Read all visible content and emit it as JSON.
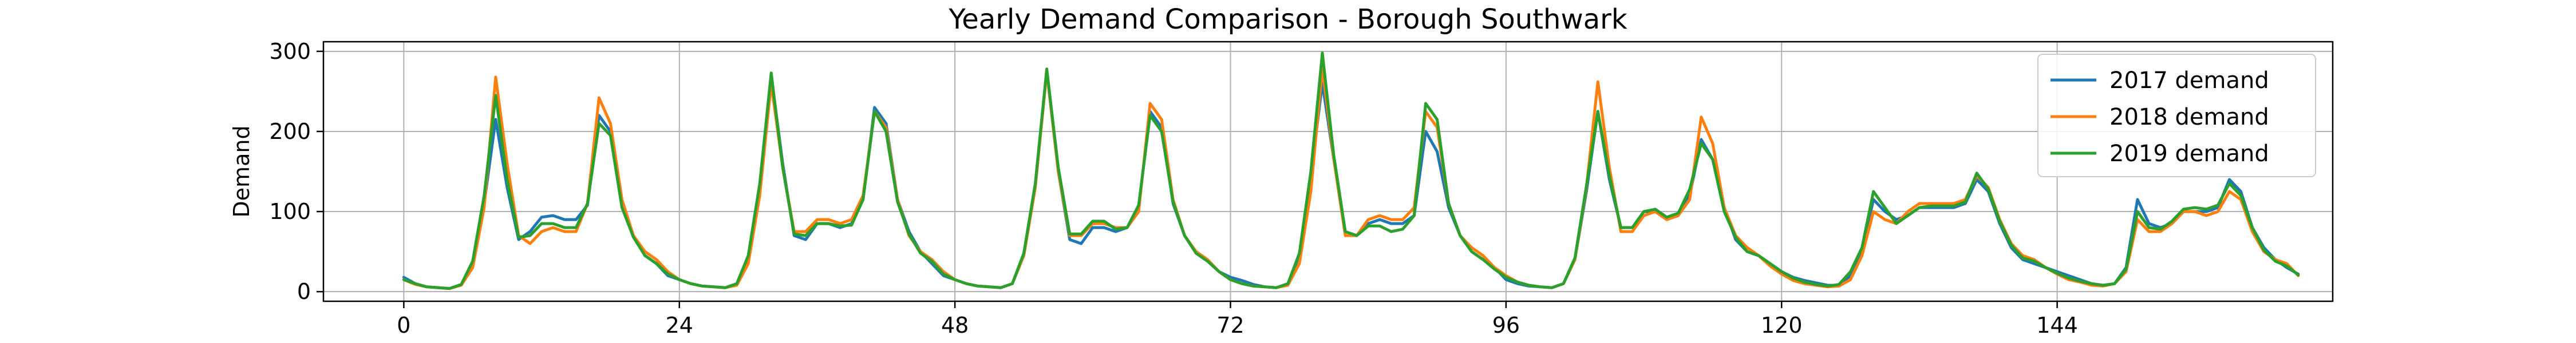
{
  "chart_data": {
    "type": "line",
    "title": "Yearly Demand Comparison - Borough Southwark",
    "xlabel": "",
    "ylabel": "Demand",
    "xlim": [
      -7,
      168
    ],
    "ylim": [
      -12,
      312
    ],
    "xticks": [
      0,
      24,
      48,
      72,
      96,
      120,
      144
    ],
    "yticks": [
      0,
      100,
      200,
      300
    ],
    "grid": true,
    "legend_position": "top-right",
    "series": [
      {
        "name": "2017 demand",
        "color": "#1f77b4",
        "values": [
          18,
          10,
          6,
          5,
          4,
          9,
          35,
          110,
          215,
          130,
          65,
          75,
          93,
          95,
          90,
          90,
          108,
          220,
          200,
          110,
          70,
          45,
          35,
          20,
          15,
          10,
          7,
          6,
          5,
          10,
          40,
          130,
          270,
          160,
          70,
          65,
          85,
          85,
          80,
          85,
          115,
          230,
          210,
          115,
          75,
          50,
          35,
          20,
          15,
          10,
          7,
          6,
          5,
          10,
          45,
          130,
          275,
          150,
          65,
          60,
          80,
          80,
          75,
          80,
          105,
          225,
          205,
          110,
          70,
          50,
          40,
          25,
          18,
          14,
          9,
          6,
          5,
          10,
          45,
          145,
          260,
          165,
          75,
          70,
          85,
          90,
          85,
          85,
          95,
          200,
          175,
          105,
          70,
          50,
          40,
          30,
          15,
          10,
          7,
          6,
          5,
          10,
          40,
          125,
          225,
          140,
          80,
          80,
          100,
          100,
          90,
          95,
          120,
          190,
          165,
          105,
          65,
          50,
          45,
          35,
          25,
          18,
          14,
          11,
          8,
          8,
          20,
          50,
          115,
          100,
          90,
          95,
          105,
          105,
          105,
          105,
          110,
          140,
          125,
          85,
          55,
          40,
          35,
          30,
          25,
          20,
          15,
          10,
          8,
          10,
          30,
          115,
          85,
          80,
          85,
          100,
          100,
          100,
          105,
          140,
          125,
          80,
          55,
          40,
          30,
          22
        ],
        "x_start": 0
      },
      {
        "name": "2018 demand",
        "color": "#ff7f0e",
        "values": [
          15,
          9,
          6,
          5,
          4,
          8,
          30,
          105,
          268,
          160,
          70,
          60,
          75,
          80,
          75,
          75,
          110,
          242,
          210,
          115,
          70,
          50,
          40,
          25,
          15,
          10,
          7,
          6,
          5,
          8,
          35,
          120,
          260,
          155,
          75,
          75,
          90,
          90,
          85,
          90,
          120,
          225,
          205,
          115,
          70,
          50,
          40,
          25,
          15,
          10,
          7,
          6,
          5,
          10,
          45,
          130,
          275,
          150,
          70,
          70,
          85,
          85,
          80,
          80,
          100,
          235,
          215,
          115,
          70,
          50,
          40,
          25,
          15,
          10,
          7,
          6,
          5,
          8,
          35,
          125,
          280,
          165,
          70,
          70,
          90,
          95,
          90,
          90,
          105,
          225,
          205,
          110,
          70,
          55,
          45,
          30,
          20,
          12,
          8,
          6,
          5,
          10,
          40,
          130,
          262,
          155,
          75,
          75,
          95,
          100,
          90,
          95,
          115,
          218,
          185,
          105,
          70,
          55,
          45,
          32,
          22,
          14,
          10,
          8,
          6,
          7,
          15,
          45,
          100,
          90,
          85,
          100,
          110,
          110,
          110,
          110,
          115,
          145,
          130,
          90,
          60,
          45,
          40,
          30,
          22,
          15,
          12,
          8,
          7,
          10,
          25,
          90,
          75,
          75,
          85,
          100,
          100,
          95,
          100,
          125,
          115,
          75,
          50,
          40,
          35,
          20
        ],
        "x_start": 0
      },
      {
        "name": "2019 demand",
        "color": "#2ca02c",
        "values": [
          15,
          10,
          6,
          5,
          4,
          9,
          38,
          120,
          245,
          140,
          68,
          70,
          85,
          85,
          80,
          80,
          110,
          210,
          195,
          105,
          68,
          45,
          35,
          22,
          15,
          10,
          7,
          6,
          5,
          10,
          45,
          135,
          273,
          155,
          72,
          70,
          85,
          85,
          82,
          83,
          115,
          225,
          200,
          112,
          72,
          48,
          38,
          22,
          15,
          10,
          7,
          6,
          5,
          10,
          48,
          135,
          278,
          155,
          72,
          72,
          88,
          88,
          78,
          80,
          108,
          220,
          200,
          112,
          70,
          48,
          38,
          25,
          15,
          10,
          7,
          6,
          5,
          10,
          48,
          150,
          298,
          170,
          75,
          70,
          82,
          82,
          75,
          78,
          95,
          235,
          215,
          110,
          70,
          50,
          40,
          28,
          18,
          12,
          8,
          6,
          5,
          10,
          42,
          132,
          225,
          145,
          80,
          80,
          100,
          103,
          93,
          98,
          128,
          185,
          165,
          100,
          68,
          50,
          45,
          35,
          25,
          17,
          12,
          9,
          7,
          9,
          25,
          55,
          125,
          105,
          85,
          95,
          105,
          107,
          107,
          107,
          112,
          148,
          128,
          88,
          58,
          42,
          38,
          30,
          23,
          17,
          13,
          10,
          8,
          10,
          28,
          100,
          80,
          78,
          88,
          103,
          105,
          103,
          108,
          135,
          120,
          80,
          52,
          38,
          32,
          21
        ],
        "x_start": 0
      }
    ]
  }
}
